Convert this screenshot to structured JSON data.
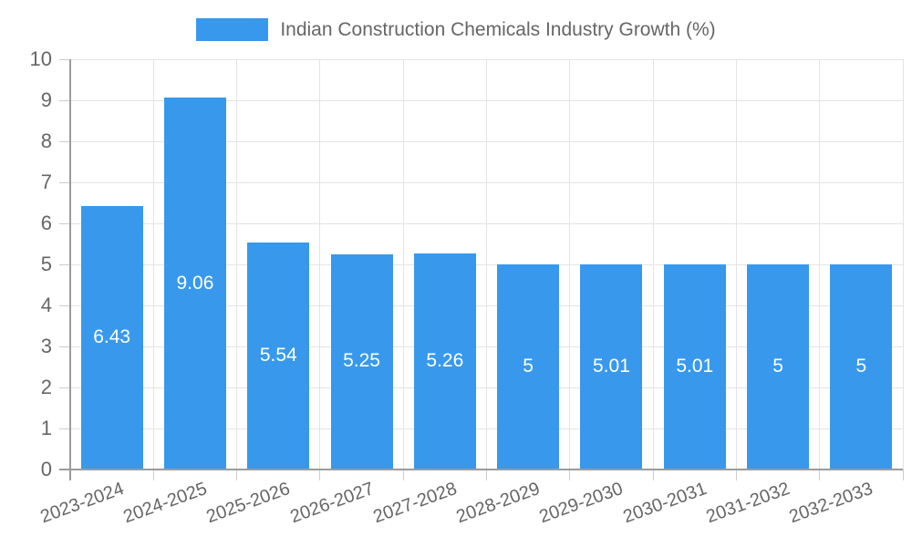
{
  "chart_data": {
    "type": "bar",
    "title": "Indian Construction Chemicals Industry Growth (%)",
    "categories": [
      "2023-2024",
      "2024-2025",
      "2025-2026",
      "2026-2027",
      "2027-2028",
      "2028-2029",
      "2029-2030",
      "2030-2031",
      "2031-2032",
      "2032-2033"
    ],
    "values": [
      6.43,
      9.06,
      5.54,
      5.25,
      5.26,
      5,
      5.01,
      5.01,
      5,
      5
    ],
    "value_labels": [
      "6.43",
      "9.06",
      "5.54",
      "5.25",
      "5.26",
      "5",
      "5.01",
      "5.01",
      "5",
      "5"
    ],
    "xlabel": "",
    "ylabel": "",
    "ylim": [
      0,
      10
    ],
    "yticks": [
      0,
      1,
      2,
      3,
      4,
      5,
      6,
      7,
      8,
      9,
      10
    ],
    "grid": true,
    "legend_position": "top",
    "bar_color": "#3899EC",
    "grid_color": "#e4e4e4",
    "axis_color": "#9b9b9b",
    "tick_color": "#cccccc",
    "text_color": "#666666",
    "bar_label_color": "#ffffff"
  }
}
